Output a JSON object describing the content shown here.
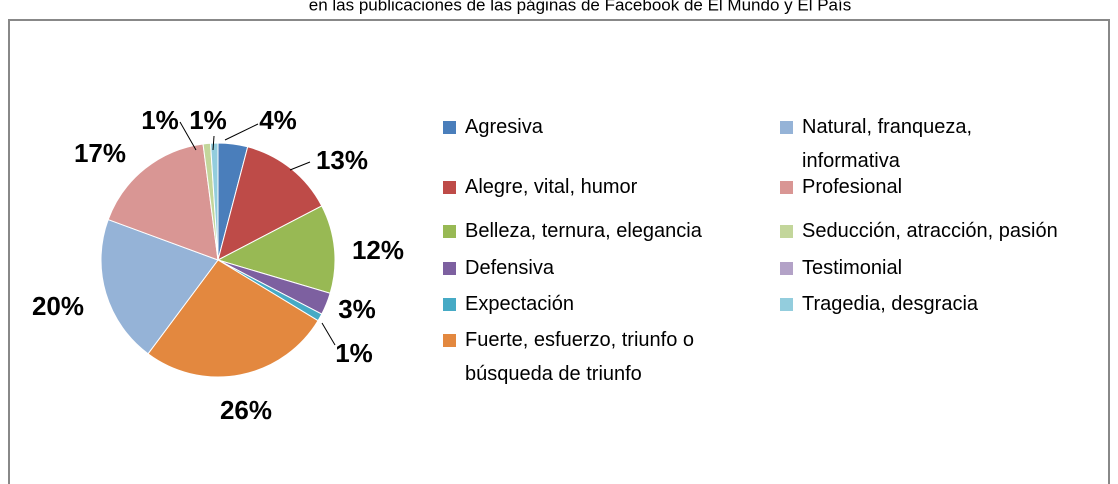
{
  "chart_data": {
    "type": "pie",
    "title": "en las publicaciones de las páginas de Facebook de El Mundo y El País",
    "categories": [
      "Agresiva",
      "Alegre, vital, humor",
      "Belleza, ternura, elegancia",
      "Defensiva",
      "Expectación",
      "Fuerte, esfuerzo, triunfo o búsqueda de triunfo",
      "Natural, franqueza, informativa",
      "Profesional",
      "Seducción, atracción, pasión",
      "Testimonial",
      "Tragedia, desgracia"
    ],
    "values": [
      4,
      13,
      12,
      3,
      1,
      26,
      20,
      17,
      1,
      0,
      1
    ],
    "value_labels": [
      "4%",
      "13%",
      "12%",
      "3%",
      "1%",
      "26%",
      "20%",
      "17%",
      "1%",
      null,
      "1%"
    ],
    "colors": [
      "#4a7ebb",
      "#be4b48",
      "#98b954",
      "#7d60a0",
      "#46aac5",
      "#e3883f",
      "#95b3d7",
      "#d99694",
      "#c3d69b",
      "#b3a2c7",
      "#93cddd"
    ],
    "legend": "right"
  }
}
